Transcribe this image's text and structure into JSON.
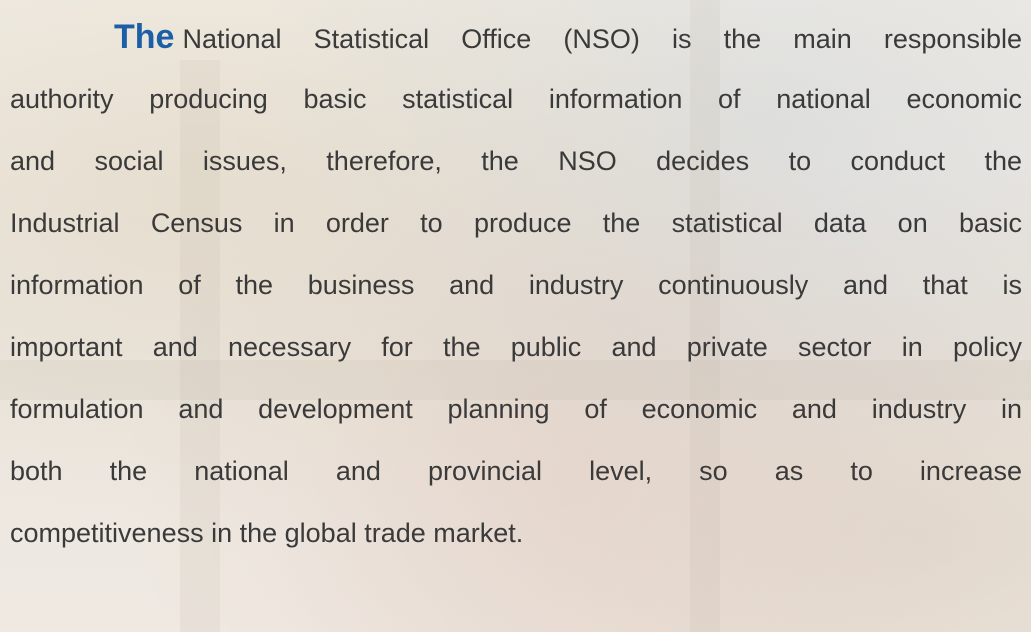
{
  "paragraph": {
    "lead": "The",
    "lines": [
      "National Statistical Office (NSO) is the main responsible",
      "authority producing basic statistical information of national economic",
      "and social issues, therefore, the NSO decides to conduct the",
      "Industrial Census in order to produce the statistical data on basic",
      "information of the business and industry continuously and that is",
      "important and necessary for the public and private sector in policy",
      "formulation and development planning of economic and industry in",
      "both the national and provincial level, so as to increase",
      "competitiveness in the global trade market."
    ]
  }
}
